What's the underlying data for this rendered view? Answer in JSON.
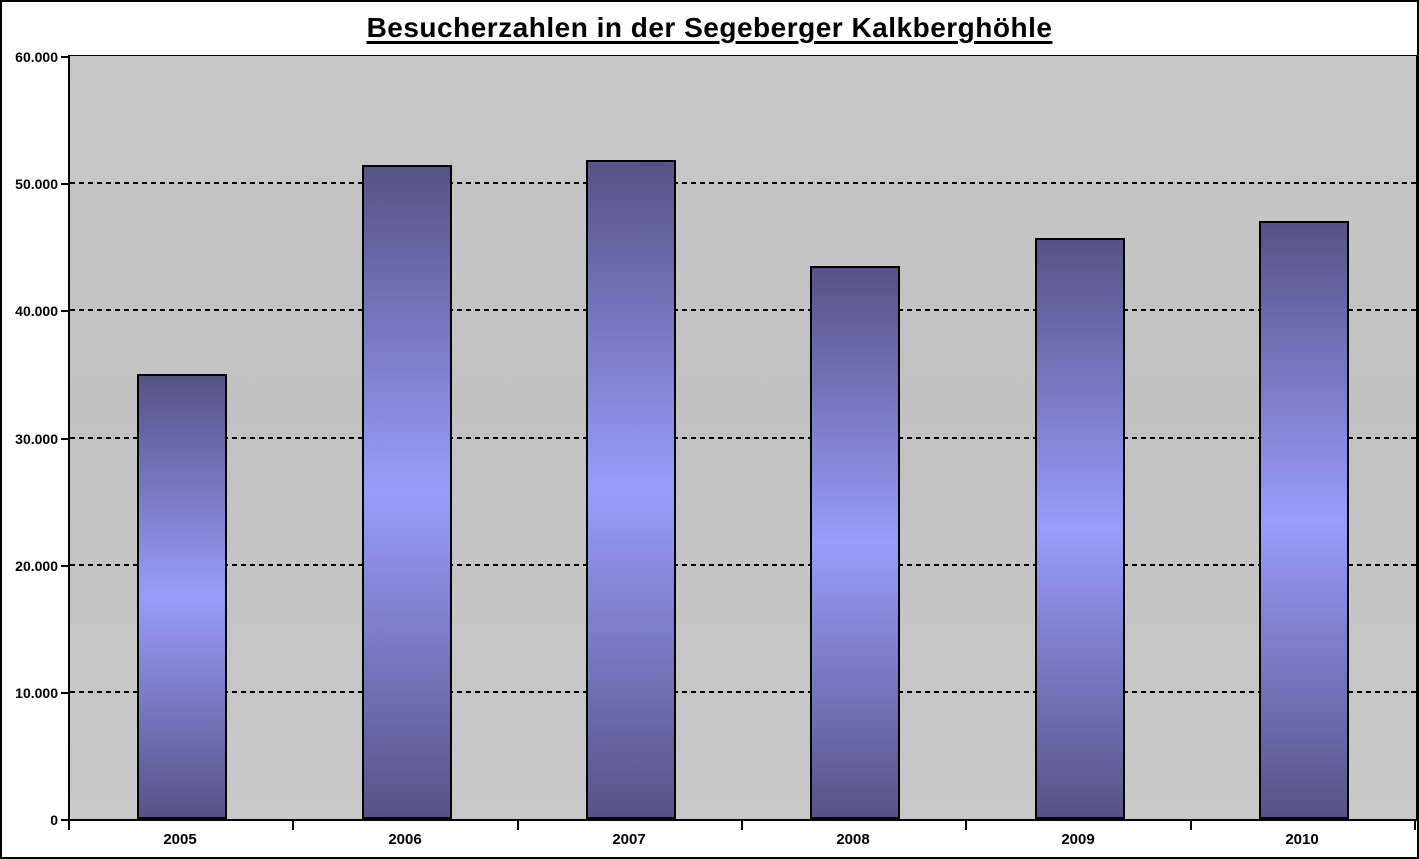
{
  "chart_data": {
    "type": "bar",
    "title": "Besucherzahlen in der Segeberger Kalkberghöhle",
    "categories": [
      "2005",
      "2006",
      "2007",
      "2008",
      "2009",
      "2010"
    ],
    "values": [
      35000,
      51400,
      51800,
      43500,
      45700,
      47000
    ],
    "series_name": "Besucherzahlen",
    "xlabel": "",
    "ylabel": "",
    "ylim": [
      0,
      60000
    ],
    "y_tick_step": 10000,
    "y_ticks": [
      {
        "value": 0,
        "label": "0"
      },
      {
        "value": 10000,
        "label": "10.000"
      },
      {
        "value": 20000,
        "label": "20.000"
      },
      {
        "value": 30000,
        "label": "30.000"
      },
      {
        "value": 40000,
        "label": "40.000"
      },
      {
        "value": 50000,
        "label": "50.000"
      },
      {
        "value": 60000,
        "label": "60.000"
      }
    ],
    "grid": "horizontal-dashed",
    "legend": "none",
    "colors": {
      "bar_dark": "#555386",
      "bar_light": "#9a9cfa",
      "bar_edge": "#000000",
      "plot_bg_top": "#c8c8c8",
      "plot_bg_mid": "#c1c1c1",
      "plot_bg_bottom": "#c9c9c9",
      "axis": "#000000",
      "title": "#000000",
      "frame_border": "#000000",
      "outer_bg": "#ffffff"
    }
  }
}
